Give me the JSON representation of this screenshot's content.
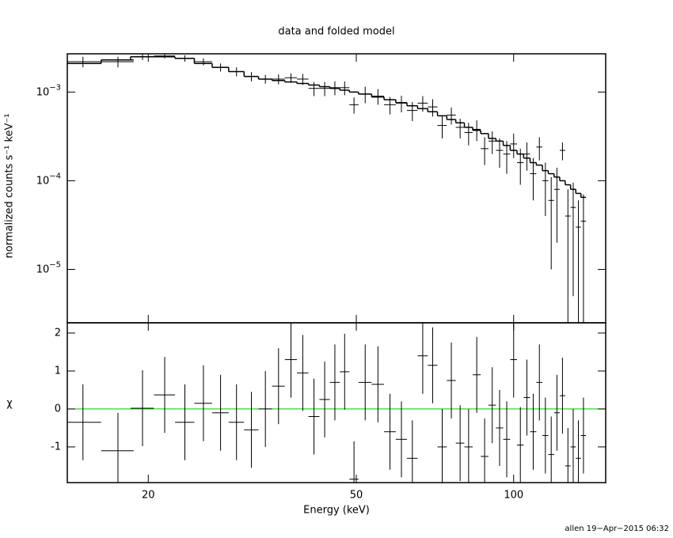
{
  "chart_data": {
    "type": "spectrum",
    "title": "data and folded model",
    "ylabel": "normalized counts s⁻¹ keV⁻¹",
    "xlabel": "Energy (keV)",
    "residual_ylabel": "χ",
    "xlog": true,
    "ylog": true,
    "xlim": [
      14,
      150
    ],
    "xticks": [
      20,
      50,
      100
    ],
    "ylim": [
      2.5e-06,
      0.0027
    ],
    "yticks": [
      {
        "value": 1e-05,
        "label": "10−5"
      },
      {
        "value": 0.0001,
        "label": "10−4"
      },
      {
        "value": 0.001,
        "label": "10−3"
      }
    ],
    "residual_ylim": [
      -1.94,
      2.27
    ],
    "residual_yticks": [
      -1,
      0,
      1,
      2
    ],
    "color": "#000000",
    "model_color": "#000000",
    "zero_line_color": "#00cc00",
    "x": [
      15,
      17.5,
      19.5,
      21.5,
      23.5,
      25.5,
      27.5,
      29.5,
      31.5,
      33.5,
      35.5,
      37.5,
      39.5,
      41.5,
      43.5,
      45.5,
      47.5,
      49.5,
      52,
      55,
      58,
      61,
      64,
      67,
      70,
      73,
      76,
      79,
      82,
      85,
      88,
      91,
      94,
      97,
      100,
      103,
      106,
      109,
      112,
      115,
      118,
      121,
      124,
      127,
      130,
      133,
      136
    ],
    "xerr": [
      1.25,
      1.25,
      1,
      1,
      1,
      1,
      1,
      1,
      1,
      1,
      1,
      1,
      1,
      1,
      1,
      1,
      1,
      1,
      1.5,
      1.5,
      1.5,
      1.5,
      1.5,
      1.5,
      1.5,
      1.5,
      1.5,
      1.5,
      1.5,
      1.5,
      1.5,
      1.5,
      1.5,
      1.5,
      1.5,
      1.5,
      1.5,
      1.5,
      1.5,
      1.5,
      1.5,
      1.5,
      1.5,
      1.5,
      1.5,
      1.5,
      1.5
    ],
    "values": [
      0.0022,
      0.0022,
      0.0025,
      0.00255,
      0.0024,
      0.0022,
      0.0019,
      0.0017,
      0.0015,
      0.0014,
      0.0014,
      0.00145,
      0.0014,
      0.0011,
      0.0011,
      0.00112,
      0.00112,
      0.00072,
      0.00095,
      0.0009,
      0.00072,
      0.00075,
      0.00062,
      0.00075,
      0.00068,
      0.00042,
      0.00055,
      0.0004,
      0.00035,
      0.00038,
      0.00023,
      0.00028,
      0.00022,
      0.0002,
      0.00026,
      0.00016,
      0.0002,
      0.00012,
      0.00024,
      0.0001,
      6e-05,
      8e-05,
      0.00022,
      4e-05,
      5e-05,
      3e-05,
      3.5e-05
    ],
    "errors": [
      0.0003,
      0.0003,
      0.0002,
      0.00015,
      0.0002,
      0.0002,
      0.0002,
      0.0002,
      0.00018,
      0.00016,
      0.00018,
      0.00018,
      0.0002,
      0.0002,
      0.0002,
      0.0002,
      0.0002,
      0.00015,
      0.0002,
      0.00018,
      0.00016,
      0.00016,
      0.00015,
      0.00015,
      0.00015,
      0.00012,
      0.00012,
      0.0001,
      0.0001,
      0.0001,
      8e-05,
      8e-05,
      8e-05,
      8e-05,
      8e-05,
      7e-05,
      7e-05,
      6e-05,
      7e-05,
      6e-05,
      5e-05,
      6e-05,
      5e-05,
      4e-05,
      4.5e-05,
      3e-05,
      3.5e-05
    ],
    "model": [
      0.0021,
      0.0023,
      0.0025,
      0.0025,
      0.0024,
      0.0021,
      0.0019,
      0.0017,
      0.0015,
      0.0014,
      0.00135,
      0.0013,
      0.00125,
      0.0012,
      0.00115,
      0.0011,
      0.00105,
      0.001,
      0.00095,
      0.00088,
      0.00082,
      0.00076,
      0.0007,
      0.00065,
      0.0006,
      0.00054,
      0.00049,
      0.00045,
      0.0004,
      0.00037,
      0.00034,
      0.0003,
      0.00028,
      0.00025,
      0.00022,
      0.0002,
      0.00018,
      0.00016,
      0.00015,
      0.00013,
      0.00012,
      0.00011,
      0.0001,
      9e-05,
      8e-05,
      7.2e-05,
      6.5e-05
    ],
    "residuals": [
      -0.35,
      -1.1,
      0.02,
      0.37,
      -0.35,
      0.15,
      -0.1,
      -0.35,
      -0.55,
      0,
      0.6,
      1.3,
      0.95,
      -0.2,
      0.25,
      0.7,
      0.98,
      -1.85,
      0.7,
      0.65,
      -0.6,
      -0.8,
      -1.3,
      1.4,
      1.15,
      -1,
      0.75,
      -0.9,
      -1,
      0.9,
      -1.25,
      0.1,
      -0.5,
      -0.8,
      1.3,
      -0.95,
      0.3,
      -0.6,
      0.7,
      -0.7,
      -1.2,
      -0.1,
      0.35,
      -1.5,
      -1,
      -1.3,
      -0.7
    ],
    "residual_error": 1
  },
  "footer": "allen 19−Apr−2015 06:32"
}
